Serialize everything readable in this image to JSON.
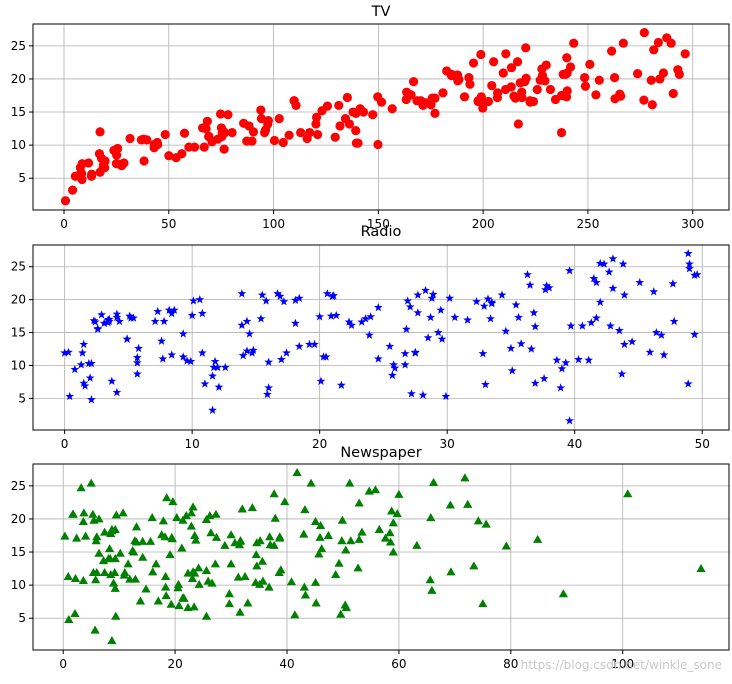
{
  "watermark": "https://blog.csdn.net/winkle_sone",
  "chart_data": [
    {
      "type": "scatter",
      "title": "TV",
      "xlabel": "",
      "ylabel": "",
      "xlim": [
        -14.8,
        317.3
      ],
      "ylim": [
        0.2,
        28.3
      ],
      "xticks": [
        0,
        50,
        100,
        150,
        200,
        250,
        300
      ],
      "yticks": [
        5,
        10,
        15,
        20,
        25
      ],
      "grid": true,
      "color": "#ff0000",
      "marker": "circle",
      "x": [
        230.1,
        44.5,
        17.2,
        151.5,
        180.8,
        8.7,
        57.5,
        120.2,
        8.6,
        199.8,
        66.1,
        214.7,
        23.8,
        97.5,
        204.1,
        195.4,
        67.8,
        281.4,
        69.2,
        147.3,
        218.4,
        237.4,
        13.2,
        228.3,
        62.3,
        262.9,
        142.9,
        240.1,
        248.8,
        70.6,
        292.9,
        112.9,
        97.2,
        265.6,
        95.7,
        290.7,
        266.9,
        74.7,
        43.1,
        228,
        202.5,
        177,
        293.6,
        206.9,
        25.1,
        175.1,
        89.7,
        239.9,
        227.2,
        66.9,
        199.8,
        100.4,
        216.4,
        182.6,
        262.7,
        198.9,
        7.3,
        136.2,
        210.8,
        210.7,
        53.5,
        261.3,
        239.3,
        102.7,
        131.1,
        69,
        31.5,
        139.3,
        237.4,
        216.8,
        199.1,
        109.8,
        26.8,
        129.4,
        213.4,
        16.9,
        27.5,
        120.5,
        5.4,
        116,
        76.4,
        239.8,
        75.3,
        68.4,
        213.5,
        193.2,
        76.3,
        110.7,
        88.3,
        109.8,
        134.3,
        28.6,
        217.7,
        250.9,
        107.4,
        163.3,
        197.6,
        184.9,
        289.7,
        135.2,
        222.4,
        296.4,
        280.2,
        187.9,
        238.2,
        137.9,
        25,
        90.4,
        13.1,
        255.4,
        225.8,
        241.7,
        175.7,
        209.6,
        78.2,
        75.1,
        139.2,
        76.4,
        125.7,
        19.4,
        141.3,
        18.8,
        224,
        123.1,
        229.5,
        87.2,
        7.8,
        80.2,
        220.3,
        59.6,
        0.7,
        265.2,
        8.4,
        219.8,
        36.9,
        48.3,
        25.6,
        273.7,
        43,
        184.9,
        73.4,
        193.7,
        220.5,
        104.6,
        96.2,
        140.3,
        240.1,
        243.2,
        38,
        44.7,
        280.7,
        121,
        197.6,
        171.3,
        187.8,
        4.1,
        93.9,
        149.8,
        11.7,
        131.7,
        172.5,
        85.7,
        188.4,
        163.5,
        117.2,
        234.5,
        17.9,
        206.8,
        215.4,
        284.3,
        50,
        164.5,
        19.6,
        168.4,
        222.4,
        276.9,
        248.4,
        170.2,
        276.7,
        165.6,
        156.6,
        218.5,
        56.2,
        287.6,
        253.8,
        205,
        139.5,
        191.1,
        286,
        18.7,
        39.5,
        75.5,
        17.2,
        166.8,
        149.7,
        38.2,
        94.2,
        177,
        283.6,
        232.1
      ],
      "y": [
        22.1,
        10.4,
        12,
        16.5,
        17.9,
        7.2,
        11.8,
        13.2,
        4.8,
        15.6,
        12.6,
        17.4,
        9.2,
        13.7,
        19,
        22.4,
        12.5,
        24.4,
        11.3,
        14.6,
        18,
        17.5,
        5.6,
        20.5,
        9.7,
        17,
        15,
        20.9,
        18.9,
        10.5,
        21.4,
        11.9,
        13.2,
        17.4,
        11.9,
        17.8,
        25.4,
        14.7,
        10.1,
        21.5,
        16.6,
        17.1,
        20.7,
        17.9,
        8.5,
        16.1,
        10.6,
        23.2,
        19.8,
        9.7,
        16.4,
        10.7,
        22.6,
        21.2,
        20.2,
        23.7,
        5.5,
        13.2,
        23.8,
        18.4,
        8.1,
        24.2,
        20.7,
        14,
        16,
        11.3,
        11,
        14.8,
        11.9,
        13.2,
        17.3,
        16.7,
        7.1,
        11.2,
        18.8,
        8.7,
        6.9,
        14.2,
        5.3,
        11,
        11.8,
        17.3,
        11.3,
        13.6,
        21.7,
        20.2,
        12,
        16,
        12.9,
        16.7,
        14,
        7.3,
        19.4,
        22.2,
        11.5,
        16.9,
        16.7,
        20.5,
        25.4,
        17.2,
        16.7,
        23.8,
        19.8,
        19.7,
        20.7,
        15,
        7.2,
        12,
        5.3,
        19.8,
        18.4,
        21.8,
        17.1,
        20.9,
        14.6,
        12.6,
        12.2,
        9.4,
        15.9,
        6.6,
        15.5,
        7,
        16.6,
        15.2,
        19.7,
        10.6,
        6.6,
        11.9,
        24.7,
        9.7,
        1.6,
        17.7,
        5.7,
        19.6,
        10.8,
        11.6,
        9.5,
        20.8,
        9.6,
        20.7,
        10.9,
        19.2,
        20.1,
        10.4,
        12.3,
        10.3,
        18.2,
        25.4,
        10.9,
        10.1,
        16.1,
        11.6,
        16.6,
        16,
        20.6,
        3.2,
        15.3,
        10.1,
        7.3,
        12.9,
        16.4,
        13.3,
        19.9,
        18,
        11.9,
        16.9,
        8,
        17.2,
        17.1,
        20,
        8.4,
        17.5,
        7.6,
        16.7,
        16.5,
        27,
        20.2,
        16.7,
        16.8,
        17.6,
        15.5,
        17.2,
        8.7,
        26.2,
        17.6,
        22.6,
        10.3,
        17.3,
        20.9,
        6.7,
        10.8,
        11.9,
        5.9,
        19.6,
        17.3,
        7.6,
        14,
        14.8,
        25.5,
        18.4
      ]
    },
    {
      "type": "scatter",
      "title": "Radio",
      "xlabel": "",
      "ylabel": "",
      "xlim": [
        -2.48,
        52.1
      ],
      "ylim": [
        0.2,
        28.3
      ],
      "xticks": [
        0,
        10,
        20,
        30,
        40,
        50
      ],
      "yticks": [
        5,
        10,
        15,
        20,
        25
      ],
      "grid": true,
      "color": "#0000ff",
      "marker": "star",
      "x": [
        37.8,
        39.3,
        45.9,
        41.3,
        10.8,
        48.9,
        32.8,
        19.6,
        2.1,
        2.6,
        5.8,
        24,
        35.1,
        7.6,
        32.9,
        47.7,
        36.6,
        39.6,
        20.5,
        23.9,
        27.7,
        5.1,
        15.9,
        16.9,
        12.6,
        3.5,
        29.3,
        16.7,
        27.1,
        16,
        28.3,
        17.4,
        1.5,
        20,
        1.4,
        4.1,
        43.8,
        49.4,
        26.7,
        37.7,
        22.3,
        33.4,
        27.7,
        8.4,
        25.7,
        22.5,
        9.9,
        41.5,
        15.8,
        11.7,
        3.1,
        9.6,
        41.7,
        46.2,
        28.8,
        49.4,
        28.1,
        19.2,
        49.6,
        29.5,
        2,
        42.7,
        15.5,
        29.6,
        42.8,
        9.3,
        24.6,
        14.5,
        27.5,
        43.9,
        30.6,
        14.3,
        33,
        5.7,
        24.6,
        43.7,
        1.6,
        28.5,
        29.9,
        7.7,
        26.7,
        4.1,
        20.3,
        44.5,
        43,
        18.4,
        27.5,
        40.6,
        25.5,
        47.8,
        4.9,
        1.5,
        33.5,
        36.5,
        14,
        31.6,
        3.5,
        21,
        42.3,
        41.7,
        4.3,
        36.3,
        10.1,
        17.2,
        34.3,
        46.4,
        11,
        0.3,
        0.4,
        26.9,
        8.2,
        38,
        15.4,
        20.6,
        46.8,
        35,
        14.3,
        0.8,
        36.9,
        16,
        26.8,
        21.7,
        2.4,
        34.6,
        32.3,
        11.8,
        38.9,
        0,
        49,
        12,
        39.6,
        2.9,
        27.2,
        33.5,
        38.6,
        47,
        39,
        28.9,
        25.9,
        43.9,
        17,
        35.4,
        33.2,
        5.7,
        14.8,
        1.9,
        7.3,
        49,
        40.3,
        25.8,
        13.9,
        8.4,
        23.3,
        39.7,
        21.1,
        11.6,
        43.5,
        1.3,
        36.9,
        18.4,
        18.1,
        35.8,
        18.1,
        36.8,
        14.7,
        3.4,
        37.6,
        5.2,
        23.6,
        10.6,
        11.6,
        20.9,
        20.1,
        7.1,
        3.4,
        48.9,
        30.2,
        7.8,
        2.3,
        10,
        2.6,
        5.4,
        5.7,
        43,
        21.3,
        45.1,
        2.1,
        28.7,
        13.9,
        12.1,
        41.1,
        10.8,
        4.1,
        42,
        35.6,
        3.7,
        4.9,
        9.3,
        42,
        8.6
      ],
      "y": [
        22.1,
        10.4,
        12,
        16.5,
        17.9,
        7.2,
        11.8,
        13.2,
        4.8,
        15.6,
        12.6,
        17.4,
        9.2,
        13.7,
        19,
        22.4,
        12.5,
        24.4,
        11.3,
        14.6,
        18,
        17.5,
        5.6,
        20.5,
        9.7,
        17,
        15,
        20.9,
        18.9,
        10.5,
        21.4,
        11.9,
        13.2,
        17.4,
        11.9,
        17.8,
        25.4,
        14.7,
        10.1,
        21.5,
        16.6,
        17.1,
        20.7,
        17.9,
        8.5,
        16.1,
        10.6,
        23.2,
        19.8,
        9.7,
        16.4,
        10.7,
        22.6,
        21.2,
        20.2,
        23.7,
        5.5,
        13.2,
        23.8,
        18.4,
        8.1,
        24.2,
        20.7,
        14,
        16,
        11.3,
        11,
        14.8,
        11.9,
        13.2,
        17.3,
        16.7,
        7.1,
        11.2,
        18.8,
        8.7,
        6.9,
        14.2,
        5.3,
        11,
        11.8,
        17.3,
        11.3,
        13.6,
        21.7,
        20.2,
        12,
        16,
        12.9,
        16.7,
        14,
        7.3,
        19.4,
        22.2,
        11.5,
        16.9,
        16.7,
        20.5,
        25.4,
        17.2,
        16.7,
        23.8,
        19.8,
        19.7,
        20.7,
        15,
        7.2,
        12,
        5.3,
        19.8,
        18.4,
        21.8,
        17.1,
        20.9,
        14.6,
        12.6,
        12.2,
        9.4,
        15.9,
        6.6,
        15.5,
        7,
        16.6,
        15.2,
        19.7,
        10.6,
        6.6,
        11.9,
        24.7,
        9.7,
        1.6,
        17.7,
        5.7,
        19.6,
        10.8,
        11.6,
        9.5,
        20.8,
        9.6,
        20.7,
        10.9,
        19.2,
        20.1,
        10.4,
        12.3,
        10.3,
        18.2,
        25.4,
        10.9,
        10.1,
        16.1,
        11.6,
        16.6,
        16,
        20.6,
        3.2,
        15.3,
        10.1,
        7.3,
        12.9,
        16.4,
        13.3,
        19.9,
        18,
        11.9,
        16.9,
        8,
        17.2,
        17.1,
        20,
        8.4,
        17.5,
        7.6,
        16.7,
        16.5,
        27,
        20.2,
        16.7,
        16.8,
        17.6,
        15.5,
        17.2,
        8.7,
        26.2,
        17.6,
        22.6,
        10.3,
        17.3,
        20.9,
        6.7,
        10.8,
        11.9,
        5.9,
        19.6,
        17.3,
        7.6,
        14,
        14.8,
        25.5,
        18.4
      ]
    },
    {
      "type": "scatter",
      "title": "Newspaper",
      "xlabel": "",
      "ylabel": "",
      "xlim": [
        -5.4,
        119.0
      ],
      "ylim": [
        0.2,
        28.3
      ],
      "xticks": [
        0,
        20,
        40,
        60,
        80,
        100
      ],
      "yticks": [
        5,
        10,
        15,
        20,
        25
      ],
      "grid": true,
      "color": "#008000",
      "marker": "triangle",
      "x": [
        69.2,
        45.1,
        69.3,
        58.5,
        58.4,
        75,
        23.5,
        11.6,
        1,
        21.2,
        24.2,
        4,
        65.9,
        7.2,
        46,
        52.9,
        114,
        55.8,
        18.3,
        19.1,
        53.4,
        23.5,
        49.6,
        26.2,
        18.3,
        19.5,
        12.6,
        22.9,
        22.9,
        40.8,
        43.2,
        38.6,
        30,
        0.3,
        7.4,
        8.5,
        5,
        45.7,
        35.1,
        32,
        31.6,
        38.7,
        1.8,
        26.4,
        43.3,
        31.5,
        35.7,
        18.5,
        49.9,
        36.8,
        34.6,
        3.6,
        39.6,
        58.7,
        15.9,
        60,
        41.4,
        16.6,
        37.7,
        9.3,
        21.4,
        54.7,
        27.3,
        8.4,
        28.9,
        0.9,
        2.2,
        10.2,
        11,
        27.2,
        38.7,
        31.7,
        19.3,
        31.3,
        13.1,
        89.4,
        20.7,
        14.2,
        9.4,
        23.1,
        22.3,
        36.9,
        32.5,
        35.6,
        33.8,
        65.7,
        16,
        63.2,
        73.4,
        51.4,
        9.3,
        33,
        59,
        72.3,
        10.9,
        52.9,
        5.9,
        22,
        51.2,
        45.9,
        49.8,
        100.9,
        21.4,
        17.9,
        5.3,
        59,
        29.7,
        23.2,
        25.6,
        5.5,
        56.5,
        23.2,
        2.4,
        10.7,
        34.5,
        52.7,
        25.6,
        14.8,
        79.2,
        22.3,
        46.2,
        50.4,
        15.6,
        12.4,
        74.2,
        25.9,
        50.6,
        9.2,
        3.2,
        43.1,
        8.7,
        43,
        2.1,
        45.1,
        65.6,
        8.5,
        9.3,
        59.7,
        20.5,
        1.7,
        12.9,
        75.6,
        37.9,
        34.4,
        38.9,
        9,
        8.7,
        44.3,
        11.9,
        20.6,
        37,
        48.7,
        14.2,
        37.7,
        9.5,
        5.7,
        50.5,
        24.3,
        45.2,
        34.6,
        30.7,
        49.3,
        25.6,
        7.4,
        5.4,
        84.8,
        21.6,
        19.4,
        57.6,
        6.4,
        18.4,
        47.4,
        17,
        12.8,
        13.1,
        41.8,
        20.3,
        35.2,
        23.7,
        17.6,
        8.3,
        27.4,
        29.7,
        71.8,
        30,
        19.6,
        26.6,
        18.2,
        3.7,
        23.4,
        5.8,
        6,
        31.6,
        3.6,
        6,
        13.8,
        8.1,
        6.4,
        66.2,
        8.7
      ],
      "y": [
        22.1,
        10.4,
        12,
        16.5,
        17.9,
        7.2,
        11.8,
        13.2,
        4.8,
        15.6,
        12.6,
        17.4,
        9.2,
        13.7,
        19,
        22.4,
        12.5,
        24.4,
        11.3,
        14.6,
        18,
        17.5,
        5.6,
        20.5,
        9.7,
        17,
        15,
        20.9,
        18.9,
        10.5,
        21.4,
        11.9,
        13.2,
        17.4,
        11.9,
        17.8,
        25.4,
        14.7,
        10.1,
        21.5,
        16.6,
        17.1,
        20.7,
        17.9,
        8.5,
        16.1,
        10.6,
        23.2,
        19.8,
        9.7,
        16.4,
        10.7,
        22.6,
        21.2,
        20.2,
        23.7,
        5.5,
        13.2,
        23.8,
        18.4,
        8.1,
        24.2,
        20.7,
        14,
        16,
        11.3,
        11,
        14.8,
        11.9,
        13.2,
        17.3,
        16.7,
        7.1,
        11.2,
        18.8,
        8.7,
        6.9,
        14.2,
        5.3,
        11,
        11.8,
        17.3,
        11.3,
        13.6,
        21.7,
        20.2,
        12,
        16,
        12.9,
        16.7,
        14,
        7.3,
        19.4,
        22.2,
        11.5,
        16.9,
        16.7,
        20.5,
        25.4,
        17.2,
        16.7,
        23.8,
        19.8,
        19.7,
        20.7,
        15,
        7.2,
        12,
        5.3,
        19.8,
        18.4,
        21.8,
        17.1,
        20.9,
        14.6,
        12.6,
        12.2,
        9.4,
        15.9,
        6.6,
        15.5,
        7,
        16.6,
        15.2,
        19.7,
        10.6,
        6.6,
        11.9,
        24.7,
        9.7,
        1.6,
        17.7,
        5.7,
        19.6,
        10.8,
        11.6,
        9.5,
        20.8,
        9.6,
        20.7,
        10.9,
        19.2,
        20.1,
        10.4,
        12.3,
        10.3,
        18.2,
        25.4,
        10.9,
        10.1,
        16.1,
        11.6,
        16.6,
        16,
        20.6,
        3.2,
        15.3,
        10.1,
        7.3,
        12.9,
        16.4,
        13.3,
        19.9,
        18,
        11.9,
        16.9,
        8,
        17.2,
        17.1,
        20,
        8.4,
        17.5,
        7.6,
        16.7,
        16.5,
        27,
        20.2,
        16.7,
        16.8,
        17.6,
        15.5,
        17.2,
        8.7,
        26.2,
        17.6,
        22.6,
        10.3,
        17.3,
        20.9,
        6.7,
        10.8,
        11.9,
        5.9,
        19.6,
        17.3,
        7.6,
        14,
        14.8,
        25.5,
        18.4
      ]
    }
  ]
}
